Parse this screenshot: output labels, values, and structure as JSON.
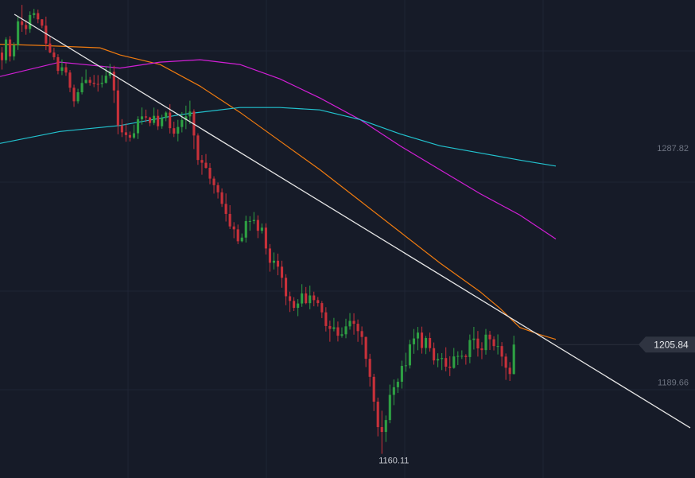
{
  "chart_data": {
    "type": "candlestick",
    "title": "",
    "grid": true,
    "colors": {
      "background": "#161b28",
      "grid": "#1f2535",
      "up": "#2ea043",
      "down": "#c8313a",
      "label_text": "#6d7380",
      "last_price_bg": "#2f3441",
      "last_price_text": "#e6e8ec",
      "trendline": "#e6e6e6",
      "ma_short": "#f07b0f",
      "ma_mid": "#d21fd6",
      "ma_long": "#22c3cf"
    },
    "y_axis": {
      "range": [
        1150,
        1350
      ],
      "labels": [
        "1287.82",
        "1189.66"
      ],
      "label_values": [
        1287.82,
        1189.66
      ]
    },
    "last_price": {
      "label": "1205.84",
      "value": 1205.84
    },
    "low_marker": {
      "label": "1160.11",
      "value": 1160.11,
      "index": 98
    },
    "series": [
      {
        "name": "",
        "kind": "ma",
        "color_key": "ma_short",
        "values": [
          [
            0,
            1331.5
          ],
          [
            10,
            1331
          ],
          [
            25,
            1330
          ],
          [
            30,
            1327
          ],
          [
            40,
            1323
          ],
          [
            50,
            1314
          ],
          [
            60,
            1303
          ],
          [
            70,
            1291
          ],
          [
            80,
            1279
          ],
          [
            90,
            1266
          ],
          [
            100,
            1253
          ],
          [
            110,
            1240
          ],
          [
            120,
            1228
          ],
          [
            125,
            1221
          ],
          [
            130,
            1213
          ],
          [
            135,
            1210
          ],
          [
            139,
            1208
          ]
        ]
      },
      {
        "name": "",
        "kind": "ma",
        "color_key": "ma_mid",
        "values": [
          [
            0,
            1318
          ],
          [
            15,
            1324
          ],
          [
            30,
            1321.5
          ],
          [
            40,
            1324
          ],
          [
            50,
            1325
          ],
          [
            60,
            1323
          ],
          [
            70,
            1317
          ],
          [
            80,
            1309
          ],
          [
            90,
            1300
          ],
          [
            100,
            1289
          ],
          [
            110,
            1279
          ],
          [
            120,
            1269
          ],
          [
            130,
            1260
          ],
          [
            139,
            1250
          ]
        ]
      },
      {
        "name": "",
        "kind": "ma",
        "color_key": "ma_long",
        "values": [
          [
            0,
            1290
          ],
          [
            15,
            1295
          ],
          [
            30,
            1297.5
          ],
          [
            45,
            1302
          ],
          [
            60,
            1305
          ],
          [
            70,
            1305
          ],
          [
            80,
            1304
          ],
          [
            90,
            1300
          ],
          [
            100,
            1294
          ],
          [
            110,
            1289
          ],
          [
            120,
            1286
          ],
          [
            130,
            1283
          ],
          [
            139,
            1280.5
          ]
        ]
      },
      {
        "name": "",
        "kind": "trendline",
        "color_key": "trendline",
        "values": [
          [
            3.6,
            1344
          ],
          [
            172.6,
            1171
          ]
        ]
      }
    ],
    "candles": {
      "x_range": [
        0,
        173.8
      ],
      "o": [
        1328,
        1324.81,
        1333.5,
        1326.41,
        1331.1,
        1341.07,
        1339.56,
        1337.85,
        1343.71,
        1344.51,
        1341.92,
        1339.26,
        1331.8,
        1328.05,
        1326.06,
        1320.35,
        1321.86,
        1319.65,
        1313.28,
        1307.62,
        1311.4,
        1315.29,
        1316.56,
        1315.36,
        1314.89,
        1314.87,
        1315.35,
        1318.32,
        1319.97,
        1312.16,
        1297.51,
        1294.63,
        1293.49,
        1292.42,
        1294.25,
        1300.12,
        1301.3,
        1300.84,
        1298.56,
        1301.53,
        1297.19,
        1300.64,
        1302.9,
        1296.36,
        1294.09,
        1296.87,
        1299.77,
        1301.32,
        1303.32,
        1293.31,
        1283.06,
        1281.91,
        1279.77,
        1275.26,
        1272.52,
        1269.53,
        1264.7,
        1260.49,
        1255.26,
        1254.04,
        1249.05,
        1250.59,
        1257.5,
        1257.52,
        1257.96,
        1253.44,
        1254.75,
        1246.03,
        1240.05,
        1240.91,
        1238.42,
        1233.77,
        1226.05,
        1224.1,
        1221.19,
        1223.02,
        1227.24,
        1223.16,
        1226.38,
        1224.43,
        1223.18,
        1219.31,
        1213.59,
        1212.38,
        1213.05,
        1209.53,
        1210.14,
        1213.45,
        1215.73,
        1214.53,
        1211.46,
        1209.02,
        1199.87,
        1192.32,
        1181.94,
        1171.29,
        1169.28,
        1174.25,
        1184.79,
        1187.97,
        1190.28,
        1196.91,
        1197.14,
        1205.94,
        1208.38,
        1210.84,
        1204.4,
        1208.57,
        1204.33,
        1199.19,
        1199.78,
        1200.19,
        1196.58,
        1196.07,
        1200.86,
        1201.06,
        1201.12,
        1200.61,
        1207.75,
        1208.33,
        1204.22,
        1203.52,
        1209.98,
        1208.05,
        1205.18,
        1205.19,
        1200.79,
        1196.13,
        1193.5
      ],
      "c": [
        1324.81,
        1333.5,
        1326.41,
        1331.1,
        1341.07,
        1339.56,
        1337.85,
        1343.71,
        1344.51,
        1341.92,
        1339.26,
        1331.8,
        1328.05,
        1326.06,
        1320.35,
        1321.86,
        1319.65,
        1313.28,
        1307.62,
        1311.4,
        1315.29,
        1316.56,
        1315.36,
        1314.89,
        1314.87,
        1315.35,
        1318.32,
        1319.97,
        1312.16,
        1297.51,
        1294.63,
        1293.49,
        1292.42,
        1294.25,
        1300.12,
        1301.3,
        1300.84,
        1298.56,
        1301.53,
        1297.19,
        1300.64,
        1302.9,
        1296.36,
        1294.09,
        1296.87,
        1299.77,
        1301.32,
        1303.32,
        1293.31,
        1283.06,
        1281.91,
        1279.77,
        1275.26,
        1272.52,
        1269.53,
        1264.7,
        1260.49,
        1255.26,
        1254.04,
        1249.05,
        1250.59,
        1257.5,
        1257.52,
        1257.96,
        1253.44,
        1254.75,
        1246.03,
        1240.05,
        1240.91,
        1238.42,
        1233.77,
        1226.05,
        1224.1,
        1221.19,
        1223.02,
        1227.24,
        1223.16,
        1226.38,
        1224.43,
        1223.18,
        1219.31,
        1213.59,
        1212.38,
        1213.05,
        1209.53,
        1210.14,
        1213.45,
        1215.73,
        1214.53,
        1211.46,
        1209.02,
        1199.87,
        1192.32,
        1181.94,
        1171.29,
        1169.28,
        1174.25,
        1184.79,
        1187.97,
        1190.28,
        1196.91,
        1197.14,
        1205.94,
        1208.38,
        1210.84,
        1204.4,
        1208.57,
        1204.33,
        1199.19,
        1199.78,
        1200.19,
        1196.58,
        1196.07,
        1200.86,
        1201.06,
        1201.12,
        1200.61,
        1207.75,
        1208.33,
        1204.22,
        1203.52,
        1209.98,
        1208.05,
        1205.18,
        1205.19,
        1200.79,
        1196.13,
        1193.5,
        1205.84
      ],
      "h": [
        1330.3,
        1334.41,
        1334.89,
        1332.29,
        1342.97,
        1347.96,
        1341.56,
        1345.25,
        1346.28,
        1345.99,
        1342.03,
        1343.05,
        1334.74,
        1329.99,
        1327.33,
        1325.14,
        1323.62,
        1320.69,
        1314.57,
        1312.86,
        1317.86,
        1320.92,
        1317.8,
        1318.64,
        1318.57,
        1318.51,
        1322.41,
        1323.28,
        1322.48,
        1317.02,
        1300.15,
        1298.37,
        1294.96,
        1297.81,
        1301.35,
        1305.03,
        1304.15,
        1301.14,
        1304.98,
        1304.25,
        1302.05,
        1303.46,
        1306.44,
        1299.11,
        1299.86,
        1303.13,
        1305.8,
        1307.88,
        1304.25,
        1294.22,
        1285.13,
        1285.56,
        1281.76,
        1276.25,
        1273.65,
        1271.17,
        1269.06,
        1264.16,
        1257.04,
        1256.05,
        1252.31,
        1259.74,
        1259.54,
        1261.28,
        1259.89,
        1256.48,
        1256.56,
        1247.88,
        1244.37,
        1243.89,
        1240.92,
        1235.27,
        1227.96,
        1225.67,
        1224.83,
        1231.1,
        1229.92,
        1230.49,
        1227.95,
        1225.73,
        1224.06,
        1221.46,
        1215.83,
        1216.99,
        1215.47,
        1213.02,
        1216.63,
        1219.01,
        1218.92,
        1216.32,
        1213.41,
        1209.16,
        1201.96,
        1193.61,
        1183.64,
        1178.15,
        1176.16,
        1189.08,
        1191.23,
        1191.67,
        1199.1,
        1202.42,
        1207.84,
        1212.34,
        1213.21,
        1213.33,
        1209.45,
        1210.82,
        1206.7,
        1202.18,
        1202.26,
        1204.7,
        1200.96,
        1204.41,
        1203.02,
        1203.42,
        1201.82,
        1210.04,
        1213.23,
        1211.52,
        1206.81,
        1212.36,
        1211.54,
        1209.31,
        1210.08,
        1206.86,
        1202.11,
        1198.5,
        1209.53
      ],
      "l": [
        1320.88,
        1323.48,
        1324.25,
        1324.78,
        1329.1,
        1336.67,
        1335.46,
        1336.28,
        1342.32,
        1340.26,
        1338.21,
        1329.02,
        1327.72,
        1324.93,
        1318.92,
        1318.57,
        1318.26,
        1311.42,
        1305.29,
        1306.63,
        1310.51,
        1315.03,
        1314.17,
        1313.52,
        1311.68,
        1313.35,
        1315.03,
        1317.19,
        1306.92,
        1293.82,
        1292.65,
        1290.7,
        1290.81,
        1291.83,
        1291.83,
        1297.86,
        1298.84,
        1297.19,
        1297.67,
        1295.62,
        1296.13,
        1299.27,
        1294.15,
        1292.65,
        1290.86,
        1294.61,
        1295.97,
        1298.05,
        1287.62,
        1281.03,
        1276.9,
        1279.44,
        1272.91,
        1268.99,
        1266.94,
        1263.4,
        1257.31,
        1254.18,
        1250.34,
        1247.85,
        1248.61,
        1248.54,
        1253.45,
        1256.29,
        1250.37,
        1252.29,
        1243.51,
        1236.33,
        1237.26,
        1234.84,
        1229.6,
        1222.29,
        1219.45,
        1219.87,
        1217.72,
        1221.62,
        1222.71,
        1220.62,
        1221.84,
        1221.72,
        1216.9,
        1211.3,
        1207.02,
        1211.36,
        1207.12,
        1208.71,
        1208.47,
        1212.08,
        1209.98,
        1206.99,
        1205.71,
        1196.42,
        1188.25,
        1178.02,
        1167.43,
        1160.11,
        1165.07,
        1172.9,
        1180.48,
        1185.58,
        1187.42,
        1194.44,
        1195.82,
        1201.96,
        1203.46,
        1202.04,
        1201.83,
        1202.87,
        1197.41,
        1196.34,
        1195.16,
        1194.64,
        1192.64,
        1195.72,
        1197.27,
        1199.81,
        1197.41,
        1198.03,
        1203.75,
        1200.8,
        1199.72,
        1201.61,
        1203.56,
        1203.38,
        1201.7,
        1196.8,
        1191.06,
        1190.6,
        1193.33
      ]
    }
  }
}
